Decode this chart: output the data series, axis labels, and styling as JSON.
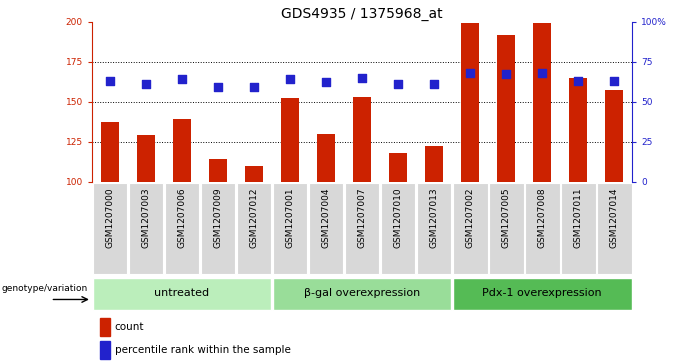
{
  "title": "GDS4935 / 1375968_at",
  "samples": [
    "GSM1207000",
    "GSM1207003",
    "GSM1207006",
    "GSM1207009",
    "GSM1207012",
    "GSM1207001",
    "GSM1207004",
    "GSM1207007",
    "GSM1207010",
    "GSM1207013",
    "GSM1207002",
    "GSM1207005",
    "GSM1207008",
    "GSM1207011",
    "GSM1207014"
  ],
  "counts": [
    137,
    129,
    139,
    114,
    110,
    152,
    130,
    153,
    118,
    122,
    199,
    192,
    199,
    165,
    157
  ],
  "percentiles": [
    63,
    61,
    64,
    59,
    59,
    64,
    62,
    65,
    61,
    61,
    68,
    67,
    68,
    63,
    63
  ],
  "group_labels": [
    "untreated",
    "β-gal overexpression",
    "Pdx-1 overexpression"
  ],
  "bar_color": "#cc2200",
  "dot_color": "#2222cc",
  "ylim_left": [
    100,
    200
  ],
  "ylim_right": [
    0,
    100
  ],
  "yticks_left": [
    100,
    125,
    150,
    175,
    200
  ],
  "yticks_right": [
    0,
    25,
    50,
    75,
    100
  ],
  "yticklabels_right": [
    "0",
    "25",
    "50",
    "75",
    "100%"
  ],
  "bar_width": 0.5,
  "dot_size": 30,
  "label_count": "count",
  "label_percentile": "percentile rank within the sample",
  "genotype_label": "genotype/variation",
  "title_fontsize": 10,
  "tick_fontsize": 6.5,
  "group_fontsize": 8,
  "legend_fontsize": 7.5
}
